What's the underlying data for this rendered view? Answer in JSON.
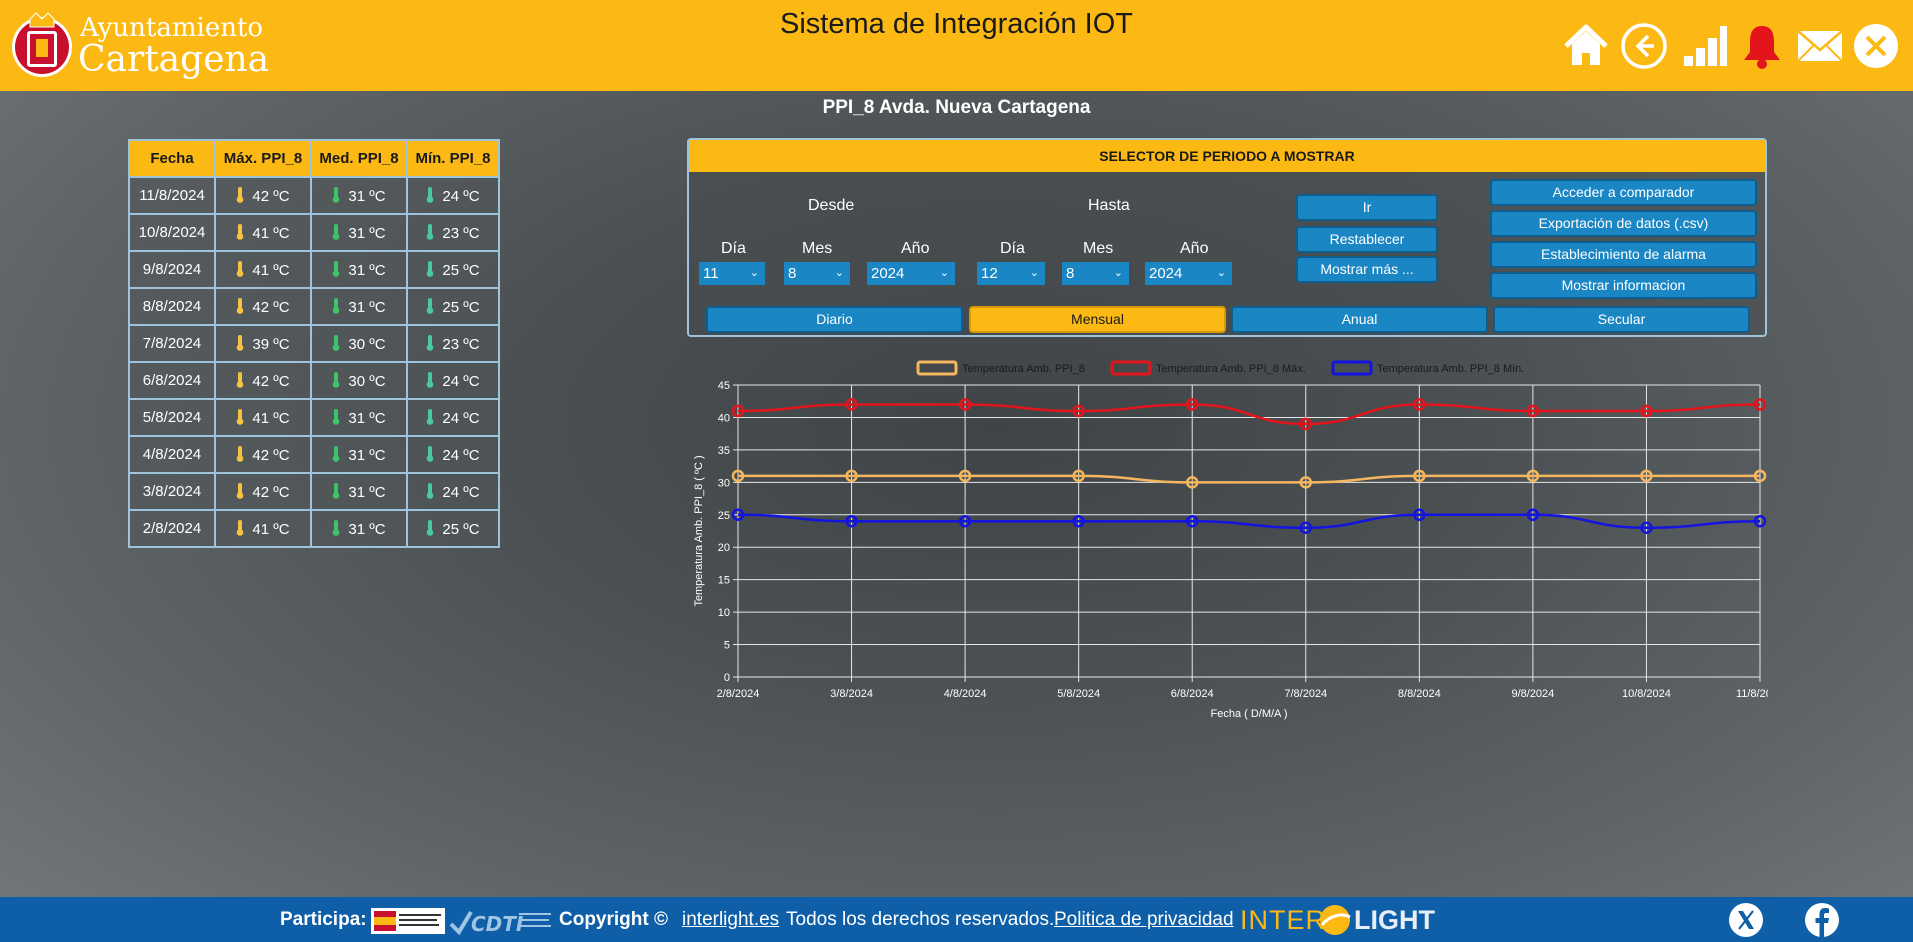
{
  "header": {
    "logo_line1": "Ayuntamiento",
    "logo_line2": "Cartagena",
    "title": "Sistema de Integración IOT",
    "icons": [
      "home-icon",
      "back-icon",
      "stats-icon",
      "bell-icon",
      "mail-icon",
      "close-icon"
    ],
    "accent": "#fdb913"
  },
  "page_title": "PPI_8 Avda. Nueva Cartagena",
  "table": {
    "headers": [
      "Fecha",
      "Máx. PPI_8",
      "Med. PPI_8",
      "Mín. PPI_8"
    ],
    "rows": [
      [
        "11/8/2024",
        "42 ºC",
        "31 ºC",
        "24 ºC"
      ],
      [
        "10/8/2024",
        "41 ºC",
        "31 ºC",
        "23 ºC"
      ],
      [
        "9/8/2024",
        "41 ºC",
        "31 ºC",
        "25 ºC"
      ],
      [
        "8/8/2024",
        "42 ºC",
        "31 ºC",
        "25 ºC"
      ],
      [
        "7/8/2024",
        "39 ºC",
        "30 ºC",
        "23 ºC"
      ],
      [
        "6/8/2024",
        "42 ºC",
        "30 ºC",
        "24 ºC"
      ],
      [
        "5/8/2024",
        "41 ºC",
        "31 ºC",
        "24 ºC"
      ],
      [
        "4/8/2024",
        "42 ºC",
        "31 ºC",
        "24 ºC"
      ],
      [
        "3/8/2024",
        "42 ºC",
        "31 ºC",
        "24 ºC"
      ],
      [
        "2/8/2024",
        "41 ºC",
        "31 ºC",
        "25 ºC"
      ]
    ]
  },
  "selector": {
    "title": "SELECTOR DE PERIODO A MOSTRAR",
    "desde": "Desde",
    "hasta": "Hasta",
    "dia": "Día",
    "mes": "Mes",
    "anio": "Año",
    "from_day": "11",
    "from_month": "8",
    "from_year": "2024",
    "to_day": "12",
    "to_month": "8",
    "to_year": "2024",
    "btn_ir": "Ir",
    "btn_reset": "Restablecer",
    "btn_more": "Mostrar más ...",
    "btn_compare": "Acceder a comparador",
    "btn_export": "Exportación de datos (.csv)",
    "btn_alarm": "Establecimiento de alarma",
    "btn_info": "Mostrar informacion",
    "period_tabs": [
      "Diario",
      "Mensual",
      "Anual",
      "Secular"
    ],
    "active_tab": "Mensual"
  },
  "chart_data": {
    "type": "line",
    "x": [
      "2/8/2024",
      "3/8/2024",
      "4/8/2024",
      "5/8/2024",
      "6/8/2024",
      "7/8/2024",
      "8/8/2024",
      "9/8/2024",
      "10/8/2024",
      "11/8/2024"
    ],
    "series": [
      {
        "name": "Temperatura Amb. PPI_8",
        "color": "#f5b75e",
        "values": [
          31,
          31,
          31,
          31,
          30,
          30,
          31,
          31,
          31,
          31
        ]
      },
      {
        "name": "Temperatura Amb. PPI_8 Máx.",
        "color": "#e3141c",
        "values": [
          41,
          42,
          42,
          41,
          42,
          39,
          42,
          41,
          41,
          42
        ]
      },
      {
        "name": "Temperatura Amb. PPI_8 Mín.",
        "color": "#1414e0",
        "values": [
          25,
          24,
          24,
          24,
          24,
          23,
          25,
          25,
          23,
          24
        ]
      }
    ],
    "xlabel": "Fecha ( D/M/A )",
    "ylabel": "Temperatura Amb. PPI_8 ( ºC )",
    "ylim": [
      0,
      45
    ],
    "yticks": [
      0,
      5,
      10,
      15,
      20,
      25,
      30,
      35,
      40,
      45
    ],
    "grid": true,
    "legend": "top"
  },
  "footer": {
    "participa": "Participa:",
    "copyright": "Copyright ©",
    "link": "interlight.es",
    "rights": "Todos los derechos reservados.",
    "privacy": "Politica de privacidad",
    "brand_left": "INTER",
    "brand_right": "LIGHT"
  }
}
